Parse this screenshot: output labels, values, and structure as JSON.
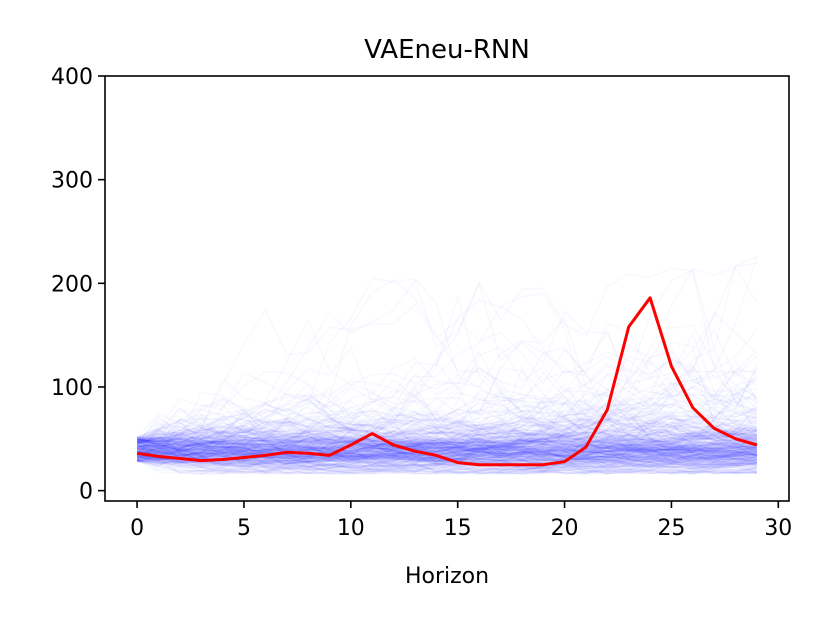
{
  "chart_data": {
    "type": "line",
    "title": "VAEneu-RNN",
    "xlabel": "Horizon",
    "ylabel": "",
    "xlim": [
      -1.5,
      30.5
    ],
    "ylim": [
      -10,
      400
    ],
    "xticks": [
      0,
      5,
      10,
      15,
      20,
      25,
      30
    ],
    "yticks": [
      0,
      100,
      200,
      300,
      400
    ],
    "grid": false,
    "legend": "none",
    "colors": {
      "samples": "#0000ff",
      "observed": "#ff0000"
    },
    "series": [
      {
        "x": [
          0,
          1,
          2,
          3,
          4,
          5,
          6,
          7,
          8,
          9,
          10,
          11,
          12,
          13,
          14,
          15,
          16,
          17,
          18,
          19,
          20,
          21,
          22,
          23,
          24,
          25,
          26,
          27,
          28,
          29
        ],
        "values": [
          36,
          33,
          31,
          29,
          30,
          32,
          34,
          37,
          36,
          34,
          44,
          55,
          44,
          38,
          34,
          27,
          25,
          25,
          25,
          25,
          28,
          42,
          78,
          158,
          186,
          120,
          80,
          60,
          50,
          44
        ]
      }
    ],
    "sample_band": {
      "count": 400,
      "start_range": [
        28,
        52
      ],
      "median_end": 40,
      "max_envelope": [
        55,
        85,
        110,
        130,
        150,
        165,
        175,
        185,
        190,
        195,
        200,
        205,
        205,
        205,
        210,
        205,
        205,
        200,
        205,
        205,
        205,
        210,
        215,
        210,
        215,
        220,
        215,
        220,
        225,
        230
      ]
    }
  }
}
